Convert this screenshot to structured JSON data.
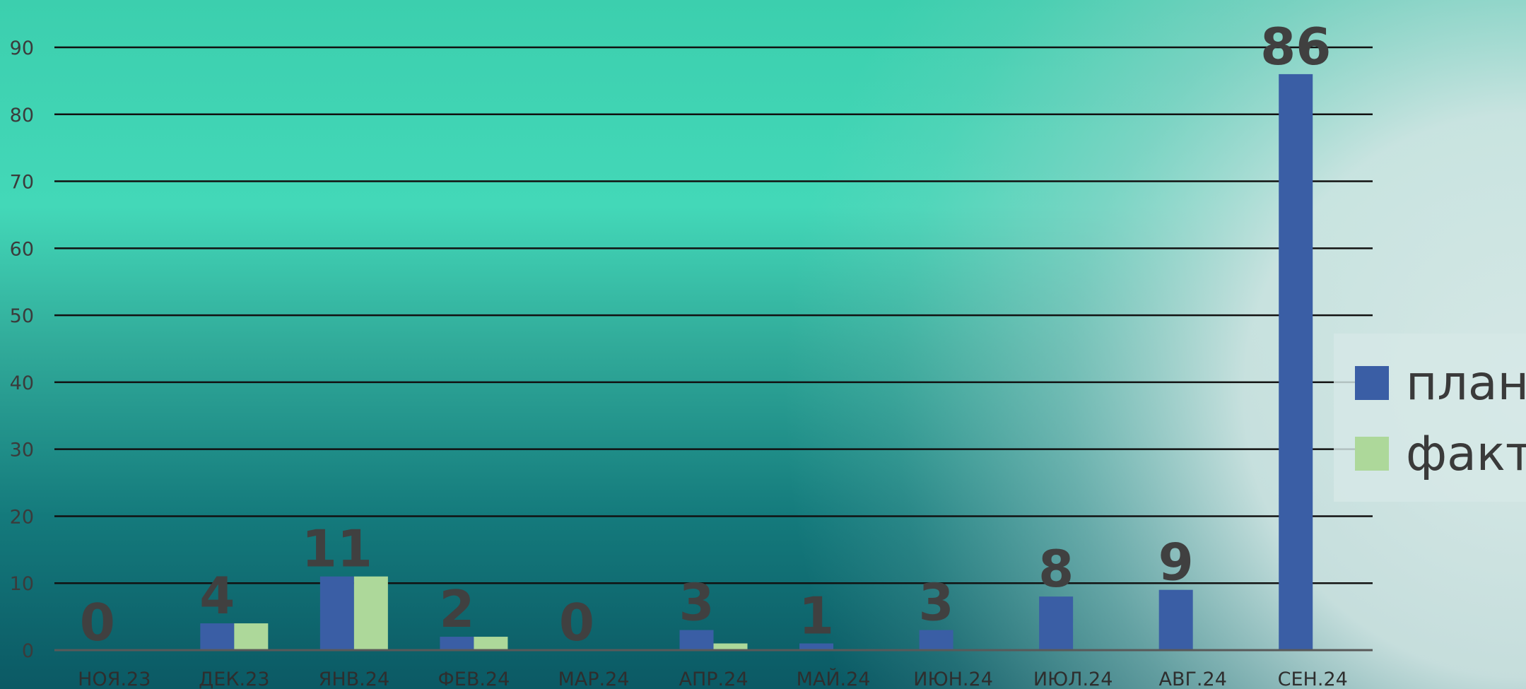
{
  "chart_data": {
    "type": "bar",
    "categories": [
      "НОЯ.23",
      "ДЕК.23",
      "ЯНВ.24",
      "ФЕВ.24",
      "МАР.24",
      "АПР.24",
      "МАЙ.24",
      "ИЮН.24",
      "ИЮЛ.24",
      "АВГ.24",
      "СЕН.24"
    ],
    "series": [
      {
        "name": "план",
        "color": "#3a5ea5",
        "values": [
          0,
          4,
          11,
          2,
          0,
          3,
          1,
          3,
          8,
          9,
          86
        ]
      },
      {
        "name": "факт",
        "color": "#add89a",
        "values": [
          0,
          4,
          11,
          2,
          0,
          1,
          0,
          0,
          0,
          0,
          0
        ]
      }
    ],
    "data_labels": [
      "0",
      "4",
      "11",
      "2",
      "0",
      "3",
      "1",
      "3",
      "8",
      "9",
      "86"
    ],
    "y_ticks": [
      "0",
      "10",
      "20",
      "30",
      "40",
      "50",
      "60",
      "70",
      "80",
      "90"
    ],
    "ylim": [
      0,
      90
    ],
    "grid": true,
    "legend_position": "right"
  }
}
